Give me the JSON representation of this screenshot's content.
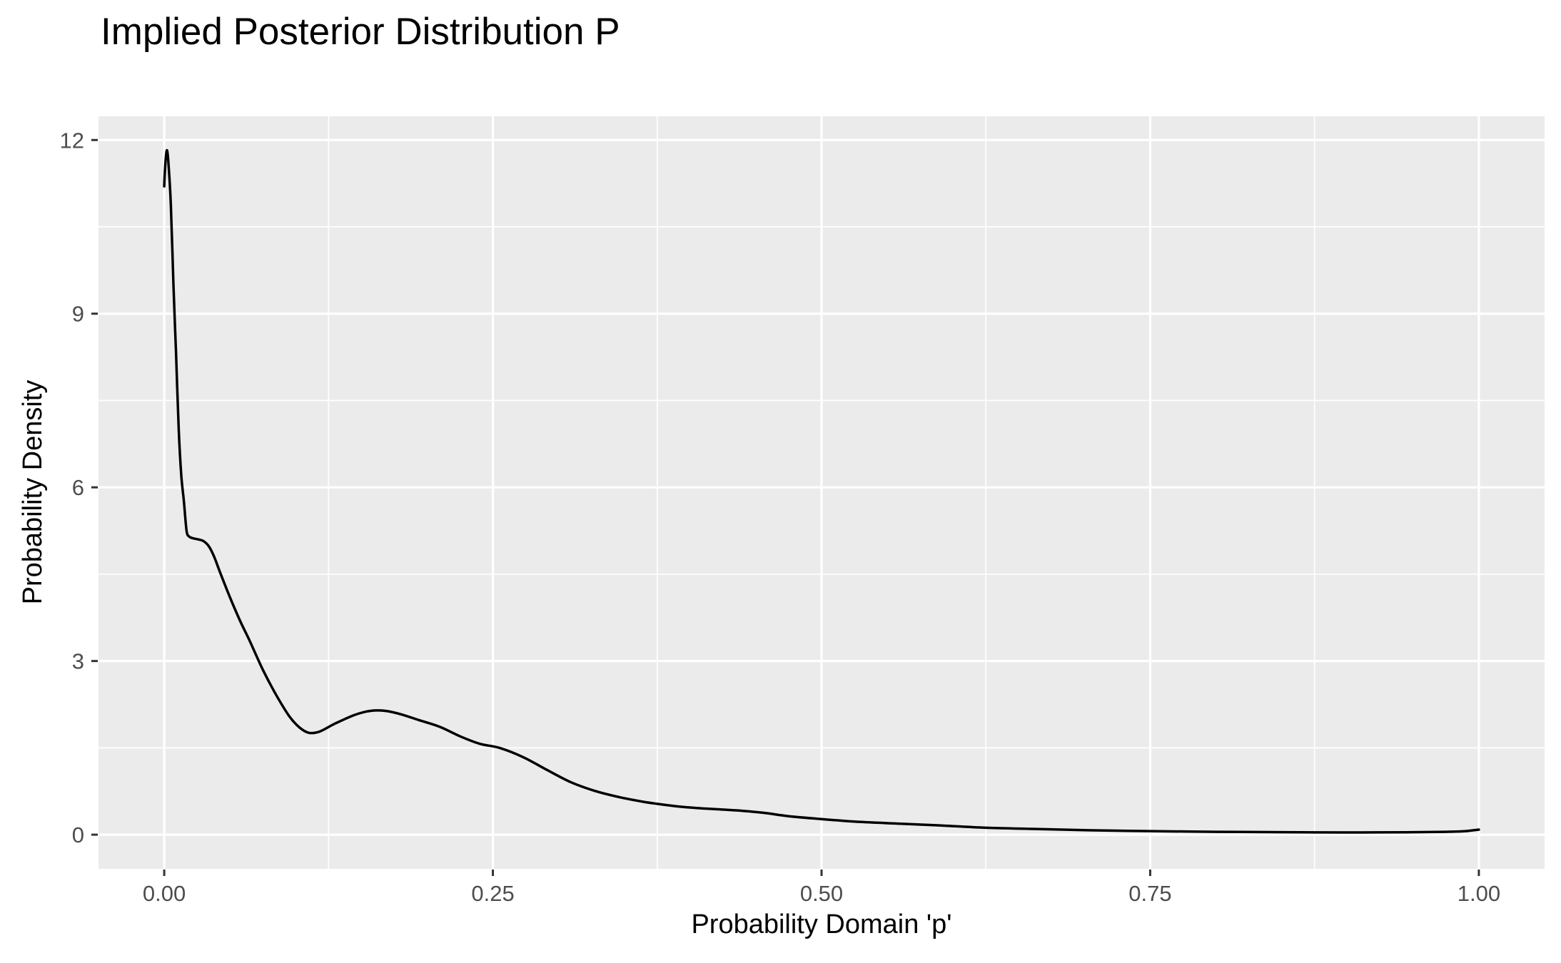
{
  "chart_data": {
    "type": "line",
    "title": "Implied Posterior Distribution P",
    "xlabel": "Probability Domain 'p'",
    "ylabel": "Probability Density",
    "legend": "none",
    "grid": true,
    "xlim": [
      -0.05,
      1.05
    ],
    "ylim": [
      -0.59,
      12.41
    ],
    "x_ticks": {
      "values": [
        0.0,
        0.25,
        0.5,
        0.75,
        1.0
      ],
      "labels": [
        "0.00",
        "0.25",
        "0.50",
        "0.75",
        "1.00"
      ]
    },
    "y_ticks": {
      "values": [
        0,
        3,
        6,
        9,
        12
      ],
      "labels": [
        "0",
        "3",
        "6",
        "9",
        "12"
      ]
    },
    "x_minor": [
      0.125,
      0.375,
      0.625,
      0.875
    ],
    "y_minor": [
      1.5,
      4.5,
      7.5,
      10.5
    ],
    "theme": {
      "background": "#FFFFFF",
      "panel_bg": "#EBEBEB",
      "grid_color": "#FFFFFF",
      "line_color": "#000000",
      "tick_color": "#333333",
      "tick_label_color": "#4D4D4D",
      "title_color": "#000000"
    },
    "series": [
      {
        "name": "posterior-density",
        "points": [
          [
            0.0,
            11.2
          ],
          [
            0.0005,
            11.45
          ],
          [
            0.0013,
            11.72
          ],
          [
            0.0022,
            11.82
          ],
          [
            0.0032,
            11.6
          ],
          [
            0.005,
            10.9
          ],
          [
            0.007,
            9.5
          ],
          [
            0.009,
            8.3
          ],
          [
            0.011,
            7.0
          ],
          [
            0.013,
            6.2
          ],
          [
            0.015,
            5.75
          ],
          [
            0.017,
            5.25
          ],
          [
            0.019,
            5.15
          ],
          [
            0.022,
            5.12
          ],
          [
            0.026,
            5.1
          ],
          [
            0.03,
            5.07
          ],
          [
            0.034,
            4.98
          ],
          [
            0.038,
            4.8
          ],
          [
            0.043,
            4.5
          ],
          [
            0.05,
            4.1
          ],
          [
            0.058,
            3.68
          ],
          [
            0.065,
            3.35
          ],
          [
            0.075,
            2.85
          ],
          [
            0.085,
            2.42
          ],
          [
            0.095,
            2.05
          ],
          [
            0.103,
            1.85
          ],
          [
            0.11,
            1.76
          ],
          [
            0.118,
            1.78
          ],
          [
            0.13,
            1.92
          ],
          [
            0.145,
            2.07
          ],
          [
            0.157,
            2.14
          ],
          [
            0.168,
            2.14
          ],
          [
            0.18,
            2.08
          ],
          [
            0.195,
            1.97
          ],
          [
            0.21,
            1.86
          ],
          [
            0.225,
            1.7
          ],
          [
            0.24,
            1.57
          ],
          [
            0.255,
            1.5
          ],
          [
            0.273,
            1.34
          ],
          [
            0.291,
            1.12
          ],
          [
            0.309,
            0.91
          ],
          [
            0.327,
            0.76
          ],
          [
            0.346,
            0.65
          ],
          [
            0.364,
            0.57
          ],
          [
            0.376,
            0.53
          ],
          [
            0.39,
            0.49
          ],
          [
            0.405,
            0.46
          ],
          [
            0.42,
            0.44
          ],
          [
            0.435,
            0.42
          ],
          [
            0.455,
            0.38
          ],
          [
            0.475,
            0.32
          ],
          [
            0.5,
            0.27
          ],
          [
            0.53,
            0.22
          ],
          [
            0.56,
            0.19
          ],
          [
            0.59,
            0.16
          ],
          [
            0.625,
            0.12
          ],
          [
            0.66,
            0.1
          ],
          [
            0.7,
            0.078
          ],
          [
            0.75,
            0.062
          ],
          [
            0.8,
            0.05
          ],
          [
            0.85,
            0.043
          ],
          [
            0.875,
            0.04
          ],
          [
            0.91,
            0.039
          ],
          [
            0.945,
            0.042
          ],
          [
            0.975,
            0.05
          ],
          [
            0.99,
            0.062
          ],
          [
            1.0,
            0.088
          ]
        ]
      }
    ]
  }
}
